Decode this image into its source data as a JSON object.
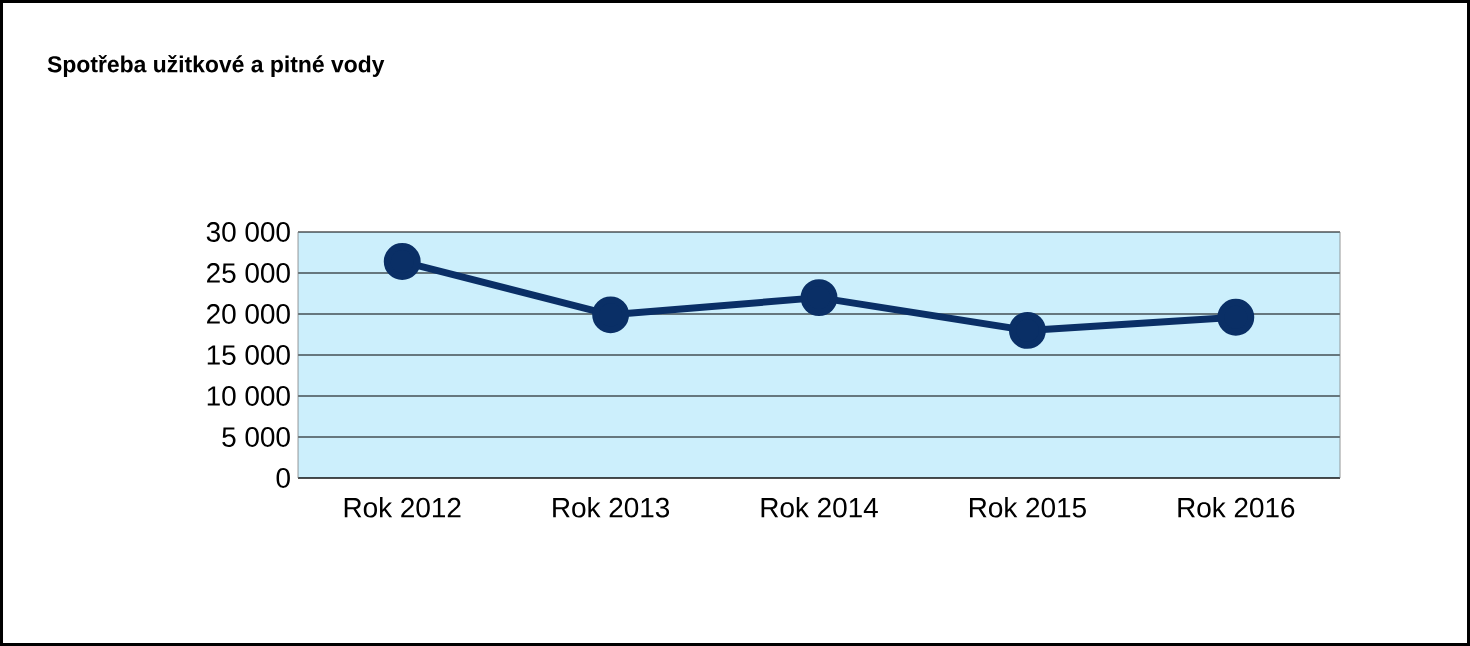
{
  "chart_data": {
    "type": "line",
    "title": "Spotřeba užitkové a pitné vody",
    "categories": [
      "Rok 2012",
      "Rok 2013",
      "Rok 2014",
      "Rok 2015",
      "Rok 2016"
    ],
    "series": [
      {
        "color": "#0a2f66",
        "values": [
          26400,
          19900,
          22000,
          18000,
          19600
        ]
      }
    ],
    "ylim": [
      0,
      30000
    ],
    "yticks": [
      {
        "value": 0,
        "label": "0"
      },
      {
        "value": 5000,
        "label": "5 000"
      },
      {
        "value": 10000,
        "label": "10 000"
      },
      {
        "value": 15000,
        "label": "15 000"
      },
      {
        "value": 20000,
        "label": "20 000"
      },
      {
        "value": 25000,
        "label": "25 000"
      },
      {
        "value": 30000,
        "label": "30 000"
      }
    ],
    "grid": "y",
    "marker": "circle",
    "line_style": "solid"
  }
}
